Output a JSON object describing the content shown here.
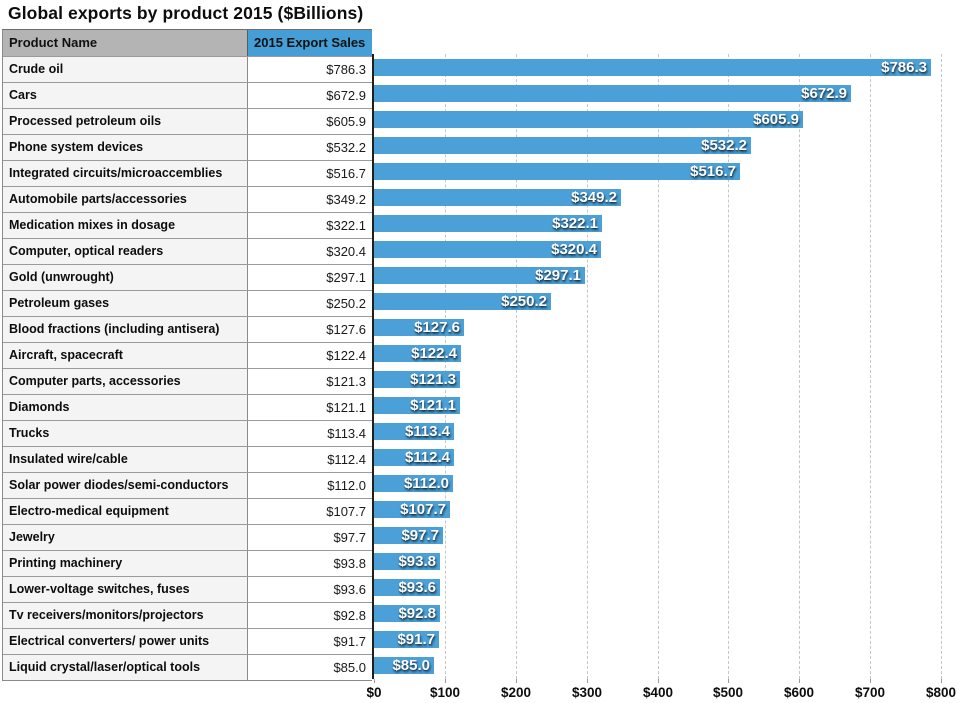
{
  "page": {
    "title": "Global exports by product 2015 ($Billions)"
  },
  "table": {
    "columns": [
      "Product Name",
      "2015 Export Sales"
    ]
  },
  "chart_data": {
    "type": "bar",
    "orientation": "horizontal",
    "title": "Global exports by product 2015 ($Billions)",
    "categories": [
      "Crude oil",
      "Cars",
      "Processed petroleum oils",
      "Phone system devices",
      "Integrated circuits/microaccemblies",
      "Automobile parts/accessories",
      "Medication mixes in dosage",
      "Computer, optical readers",
      "Gold (unwrought)",
      "Petroleum gases",
      "Blood fractions (including antisera)",
      "Aircraft, spacecraft",
      "Computer parts, accessories",
      "Diamonds",
      "Trucks",
      "Insulated wire/cable",
      "Solar power diodes/semi-conductors",
      "Electro-medical equipment",
      "Jewelry",
      "Printing machinery",
      "Lower-voltage switches, fuses",
      "Tv receivers/monitors/projectors",
      "Electrical converters/ power units",
      "Liquid crystal/laser/optical tools"
    ],
    "values": [
      786.3,
      672.9,
      605.9,
      532.2,
      516.7,
      349.2,
      322.1,
      320.4,
      297.1,
      250.2,
      127.6,
      122.4,
      121.3,
      121.1,
      113.4,
      112.4,
      112.0,
      107.7,
      97.7,
      93.8,
      93.6,
      92.8,
      91.7,
      85.0
    ],
    "value_labels": [
      "$786.3",
      "$672.9",
      "$605.9",
      "$532.2",
      "$516.7",
      "$349.2",
      "$322.1",
      "$320.4",
      "$297.1",
      "$250.2",
      "$127.6",
      "$122.4",
      "$121.3",
      "$121.1",
      "$113.4",
      "$112.4",
      "$112.0",
      "$107.7",
      "$97.7",
      "$93.8",
      "$93.6",
      "$92.8",
      "$91.7",
      "$85.0"
    ],
    "xlabel": "",
    "ylabel": "",
    "xlim": [
      0,
      800
    ],
    "x_ticks": [
      "$0",
      "$100",
      "$200",
      "$300",
      "$400",
      "$500",
      "$600",
      "$700",
      "$800"
    ],
    "x_tick_values": [
      0,
      100,
      200,
      300,
      400,
      500,
      600,
      700,
      800
    ],
    "grid": "vertical-dashed",
    "legend": "none",
    "bar_color": "#4aa0d7",
    "bar_label_color": "#ffffff",
    "header_blue": "#459ed6",
    "header_gray": "#b4b4b4"
  }
}
